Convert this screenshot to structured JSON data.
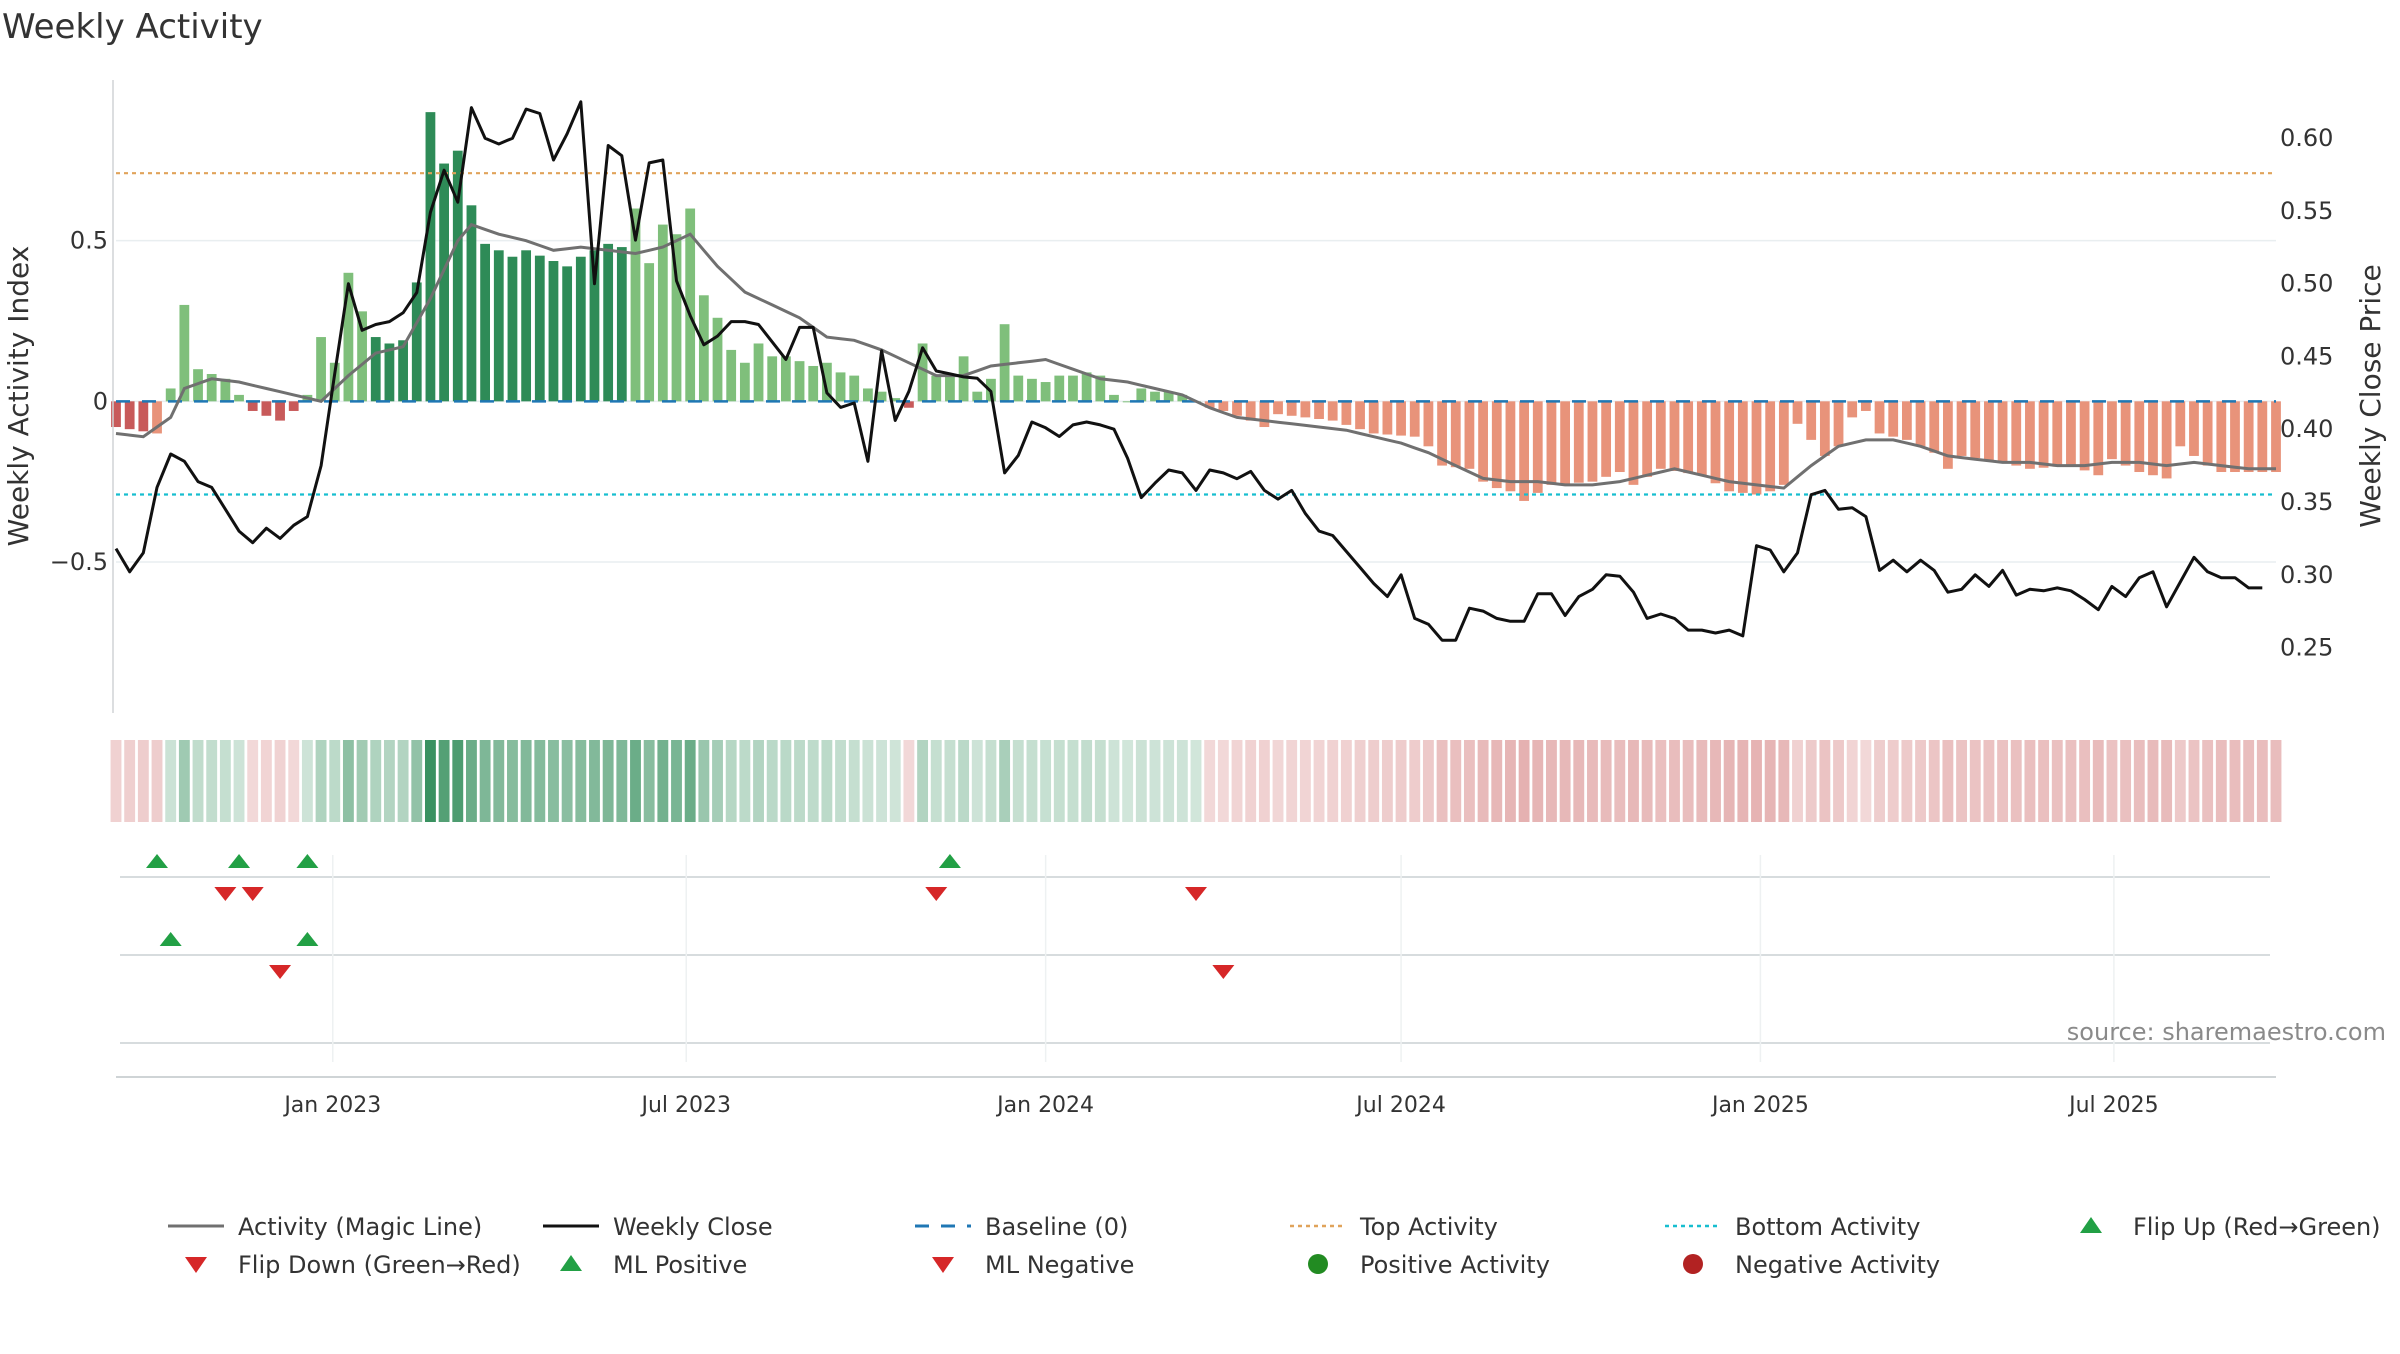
{
  "chart_data": {
    "type": "bar",
    "title": "Weekly Activity",
    "ylabel": "Weekly Activity Index",
    "ylabel_right": "Weekly Close Price",
    "ylim": [
      -0.97,
      1.0
    ],
    "ylim_right": [
      0.205,
      0.64
    ],
    "yticks": [
      -0.5,
      0,
      0.5
    ],
    "yticks_right": [
      0.25,
      0.3,
      0.35,
      0.4,
      0.45,
      0.5,
      0.55,
      0.6
    ],
    "x_start": "2022-09-12",
    "x_end": "2025-09-22",
    "week_step_days": 7,
    "xticks": [
      {
        "date": "2023-01-01",
        "label": "Jan 2023"
      },
      {
        "date": "2023-07-01",
        "label": "Jul 2023"
      },
      {
        "date": "2024-01-01",
        "label": "Jan 2024"
      },
      {
        "date": "2024-07-01",
        "label": "Jul 2024"
      },
      {
        "date": "2025-01-01",
        "label": "Jan 2025"
      },
      {
        "date": "2025-07-01",
        "label": "Jul 2025"
      }
    ],
    "top_activity": 0.71,
    "bottom_activity": -0.29,
    "baseline": 0,
    "grid": true,
    "source_note": "source: sharemaestro.com",
    "colors": {
      "strong_positive": "#2e8b57",
      "positive": "#7fbf7b",
      "strong_negative": "#c85a5a",
      "negative": "#e8937a",
      "magic_line": "#707070",
      "close": "#111111",
      "baseline": "#1f77b4",
      "top": "#e0a35a",
      "bottom": "#17becf",
      "flip_up": "#22a045",
      "flip_down": "#d62728",
      "ml_positive": "#22a045",
      "ml_negative": "#d62728",
      "positive_activity": "#228b22",
      "negative_activity": "#b22222"
    },
    "activity_knots": [
      [
        0,
        -0.08
      ],
      [
        3,
        -0.1
      ],
      [
        4,
        0.04
      ],
      [
        5,
        0.3
      ],
      [
        6,
        0.1
      ],
      [
        8,
        0.07
      ],
      [
        9,
        0.02
      ],
      [
        10,
        -0.03
      ],
      [
        12,
        -0.06
      ],
      [
        13,
        -0.03
      ],
      [
        14,
        0.02
      ],
      [
        15,
        0.2
      ],
      [
        16,
        0.12
      ],
      [
        17,
        0.4
      ],
      [
        18,
        0.28
      ],
      [
        19,
        0.2
      ],
      [
        20,
        0.18
      ],
      [
        21,
        0.19
      ],
      [
        22,
        0.37
      ],
      [
        23,
        0.9
      ],
      [
        24,
        0.74
      ],
      [
        25,
        0.78
      ],
      [
        26,
        0.61
      ],
      [
        27,
        0.49
      ],
      [
        29,
        0.45
      ],
      [
        30,
        0.47
      ],
      [
        33,
        0.42
      ],
      [
        34,
        0.45
      ],
      [
        35,
        0.47
      ],
      [
        36,
        0.49
      ],
      [
        37,
        0.48
      ],
      [
        38,
        0.6
      ],
      [
        39,
        0.43
      ],
      [
        40,
        0.55
      ],
      [
        41,
        0.52
      ],
      [
        42,
        0.6
      ],
      [
        43,
        0.33
      ],
      [
        44,
        0.26
      ],
      [
        45,
        0.16
      ],
      [
        46,
        0.12
      ],
      [
        47,
        0.18
      ],
      [
        48,
        0.14
      ],
      [
        49,
        0.14
      ],
      [
        51,
        0.11
      ],
      [
        52,
        0.12
      ],
      [
        53,
        0.09
      ],
      [
        54,
        0.08
      ],
      [
        55,
        0.04
      ],
      [
        56,
        0.03
      ],
      [
        57,
        0.01
      ],
      [
        58,
        -0.02
      ],
      [
        59,
        0.18
      ],
      [
        60,
        0.08
      ],
      [
        61,
        0.08
      ],
      [
        62,
        0.14
      ],
      [
        63,
        0.03
      ],
      [
        64,
        0.07
      ],
      [
        65,
        0.24
      ],
      [
        66,
        0.08
      ],
      [
        67,
        0.07
      ],
      [
        68,
        0.06
      ],
      [
        69,
        0.08
      ],
      [
        70,
        0.08
      ],
      [
        71,
        0.09
      ],
      [
        72,
        0.08
      ],
      [
        73,
        0.02
      ],
      [
        74,
        0.0
      ],
      [
        75,
        0.04
      ],
      [
        76,
        0.03
      ],
      [
        77,
        0.03
      ],
      [
        78,
        0.02
      ],
      [
        79,
        0.0
      ],
      [
        80,
        -0.02
      ],
      [
        81,
        -0.03
      ],
      [
        83,
        -0.06
      ],
      [
        84,
        -0.08
      ],
      [
        85,
        -0.04
      ],
      [
        89,
        -0.06
      ],
      [
        92,
        -0.1
      ],
      [
        95,
        -0.11
      ],
      [
        96,
        -0.14
      ],
      [
        97,
        -0.2
      ],
      [
        99,
        -0.21
      ],
      [
        100,
        -0.25
      ],
      [
        101,
        -0.27
      ],
      [
        102,
        -0.28
      ],
      [
        103,
        -0.31
      ],
      [
        105,
        -0.26
      ],
      [
        108,
        -0.25
      ],
      [
        110,
        -0.22
      ],
      [
        111,
        -0.26
      ],
      [
        113,
        -0.21
      ],
      [
        116,
        -0.23
      ],
      [
        118,
        -0.28
      ],
      [
        120,
        -0.29
      ],
      [
        121,
        -0.28
      ],
      [
        122,
        -0.26
      ],
      [
        123,
        -0.07
      ],
      [
        124,
        -0.12
      ],
      [
        125,
        -0.17
      ],
      [
        126,
        -0.14
      ],
      [
        127,
        -0.05
      ],
      [
        128,
        -0.03
      ],
      [
        129,
        -0.1
      ],
      [
        131,
        -0.12
      ],
      [
        132,
        -0.14
      ],
      [
        133,
        -0.16
      ],
      [
        134,
        -0.21
      ],
      [
        135,
        -0.17
      ],
      [
        138,
        -0.19
      ],
      [
        140,
        -0.21
      ],
      [
        143,
        -0.2
      ],
      [
        145,
        -0.23
      ],
      [
        146,
        -0.18
      ],
      [
        148,
        -0.22
      ],
      [
        150,
        -0.24
      ],
      [
        151,
        -0.14
      ],
      [
        153,
        -0.2
      ],
      [
        154,
        -0.22
      ],
      [
        156,
        -0.22
      ]
    ],
    "bar_shades": [
      1,
      1,
      1,
      0,
      1,
      1,
      0,
      0,
      0,
      0,
      1,
      1,
      1,
      1,
      0,
      1,
      1,
      1,
      1,
      2,
      3,
      3,
      2,
      2,
      2,
      2,
      2,
      2,
      2,
      2,
      2,
      2,
      2,
      2,
      2,
      2,
      2,
      2,
      1,
      1,
      1,
      1,
      1,
      1,
      1,
      1,
      1,
      1,
      1,
      1,
      1,
      1,
      1,
      1,
      0,
      0,
      1,
      1,
      1,
      1,
      1,
      1,
      1,
      1,
      1,
      1,
      1,
      1,
      1,
      1,
      1,
      1,
      0,
      0,
      0,
      0,
      0,
      0,
      0,
      0,
      0,
      0,
      0,
      0,
      0,
      0,
      0,
      0,
      0,
      0,
      0,
      0,
      0,
      0,
      0,
      0,
      0,
      0,
      0,
      0,
      0,
      0,
      0,
      0,
      0,
      0,
      0,
      0,
      0,
      0,
      0,
      0,
      0,
      0,
      0,
      0,
      0,
      0,
      0,
      0,
      0,
      0,
      0,
      0,
      0,
      0,
      0,
      0,
      0,
      0,
      0,
      0,
      0,
      0,
      0,
      0,
      0,
      0,
      0,
      0,
      0,
      0,
      0,
      0,
      0,
      0,
      0,
      0,
      0,
      0,
      0,
      0,
      0,
      0,
      0,
      0,
      0
    ],
    "magic_line": [
      [
        0,
        -0.1
      ],
      [
        2,
        -0.11
      ],
      [
        4,
        -0.05
      ],
      [
        5,
        0.04
      ],
      [
        7,
        0.07
      ],
      [
        9,
        0.06
      ],
      [
        11,
        0.04
      ],
      [
        13,
        0.02
      ],
      [
        15,
        0.0
      ],
      [
        17,
        0.08
      ],
      [
        19,
        0.15
      ],
      [
        21,
        0.17
      ],
      [
        23,
        0.32
      ],
      [
        25,
        0.5
      ],
      [
        26,
        0.55
      ],
      [
        28,
        0.52
      ],
      [
        30,
        0.5
      ],
      [
        32,
        0.47
      ],
      [
        34,
        0.48
      ],
      [
        36,
        0.47
      ],
      [
        38,
        0.46
      ],
      [
        40,
        0.48
      ],
      [
        42,
        0.52
      ],
      [
        44,
        0.42
      ],
      [
        46,
        0.34
      ],
      [
        48,
        0.3
      ],
      [
        50,
        0.26
      ],
      [
        52,
        0.2
      ],
      [
        54,
        0.19
      ],
      [
        56,
        0.16
      ],
      [
        58,
        0.12
      ],
      [
        60,
        0.08
      ],
      [
        62,
        0.08
      ],
      [
        64,
        0.11
      ],
      [
        66,
        0.12
      ],
      [
        68,
        0.13
      ],
      [
        70,
        0.1
      ],
      [
        72,
        0.07
      ],
      [
        74,
        0.06
      ],
      [
        76,
        0.04
      ],
      [
        78,
        0.02
      ],
      [
        80,
        -0.02
      ],
      [
        82,
        -0.05
      ],
      [
        84,
        -0.06
      ],
      [
        86,
        -0.07
      ],
      [
        88,
        -0.08
      ],
      [
        90,
        -0.09
      ],
      [
        92,
        -0.11
      ],
      [
        94,
        -0.13
      ],
      [
        96,
        -0.16
      ],
      [
        98,
        -0.2
      ],
      [
        100,
        -0.24
      ],
      [
        102,
        -0.25
      ],
      [
        104,
        -0.25
      ],
      [
        106,
        -0.26
      ],
      [
        108,
        -0.26
      ],
      [
        110,
        -0.25
      ],
      [
        112,
        -0.23
      ],
      [
        114,
        -0.21
      ],
      [
        116,
        -0.23
      ],
      [
        118,
        -0.25
      ],
      [
        120,
        -0.26
      ],
      [
        122,
        -0.27
      ],
      [
        124,
        -0.2
      ],
      [
        126,
        -0.14
      ],
      [
        128,
        -0.12
      ],
      [
        130,
        -0.12
      ],
      [
        132,
        -0.14
      ],
      [
        134,
        -0.17
      ],
      [
        136,
        -0.18
      ],
      [
        138,
        -0.19
      ],
      [
        140,
        -0.19
      ],
      [
        142,
        -0.2
      ],
      [
        144,
        -0.2
      ],
      [
        146,
        -0.19
      ],
      [
        148,
        -0.19
      ],
      [
        150,
        -0.2
      ],
      [
        152,
        -0.19
      ],
      [
        154,
        -0.2
      ],
      [
        156,
        -0.21
      ]
    ],
    "weekly_close": [
      [
        0,
        0.318
      ],
      [
        1,
        0.302
      ],
      [
        2,
        0.315
      ],
      [
        3,
        0.36
      ],
      [
        4,
        0.383
      ],
      [
        5,
        0.378
      ],
      [
        6,
        0.364
      ],
      [
        7,
        0.36
      ],
      [
        8,
        0.345
      ],
      [
        9,
        0.33
      ],
      [
        10,
        0.322
      ],
      [
        11,
        0.332
      ],
      [
        12,
        0.325
      ],
      [
        13,
        0.334
      ],
      [
        14,
        0.34
      ],
      [
        15,
        0.375
      ],
      [
        16,
        0.438
      ],
      [
        17,
        0.5
      ],
      [
        18,
        0.468
      ],
      [
        19,
        0.472
      ],
      [
        20,
        0.474
      ],
      [
        21,
        0.48
      ],
      [
        22,
        0.494
      ],
      [
        23,
        0.549
      ],
      [
        24,
        0.578
      ],
      [
        25,
        0.556
      ],
      [
        26,
        0.621
      ],
      [
        27,
        0.6
      ],
      [
        28,
        0.596
      ],
      [
        29,
        0.6
      ],
      [
        30,
        0.62
      ],
      [
        31,
        0.617
      ],
      [
        32,
        0.585
      ],
      [
        33,
        0.603
      ],
      [
        34,
        0.625
      ],
      [
        35,
        0.5
      ],
      [
        36,
        0.595
      ],
      [
        37,
        0.588
      ],
      [
        38,
        0.53
      ],
      [
        39,
        0.583
      ],
      [
        40,
        0.585
      ],
      [
        41,
        0.502
      ],
      [
        42,
        0.478
      ],
      [
        43,
        0.458
      ],
      [
        44,
        0.464
      ],
      [
        45,
        0.474
      ],
      [
        46,
        0.474
      ],
      [
        47,
        0.472
      ],
      [
        48,
        0.46
      ],
      [
        49,
        0.448
      ],
      [
        50,
        0.47
      ],
      [
        51,
        0.47
      ],
      [
        52,
        0.425
      ],
      [
        53,
        0.415
      ],
      [
        54,
        0.418
      ],
      [
        55,
        0.378
      ],
      [
        56,
        0.454
      ],
      [
        57,
        0.406
      ],
      [
        58,
        0.426
      ],
      [
        59,
        0.456
      ],
      [
        60,
        0.44
      ],
      [
        61,
        0.438
      ],
      [
        62,
        0.436
      ],
      [
        63,
        0.435
      ],
      [
        64,
        0.426
      ],
      [
        65,
        0.37
      ],
      [
        66,
        0.382
      ],
      [
        67,
        0.405
      ],
      [
        68,
        0.401
      ],
      [
        69,
        0.395
      ],
      [
        70,
        0.403
      ],
      [
        71,
        0.405
      ],
      [
        72,
        0.403
      ],
      [
        73,
        0.4
      ],
      [
        74,
        0.38
      ],
      [
        75,
        0.353
      ],
      [
        76,
        0.363
      ],
      [
        77,
        0.372
      ],
      [
        78,
        0.37
      ],
      [
        79,
        0.358
      ],
      [
        80,
        0.372
      ],
      [
        81,
        0.37
      ],
      [
        82,
        0.366
      ],
      [
        83,
        0.371
      ],
      [
        84,
        0.358
      ],
      [
        85,
        0.352
      ],
      [
        86,
        0.358
      ],
      [
        87,
        0.342
      ],
      [
        88,
        0.33
      ],
      [
        89,
        0.327
      ],
      [
        90,
        0.316
      ],
      [
        91,
        0.305
      ],
      [
        92,
        0.294
      ],
      [
        93,
        0.285
      ],
      [
        94,
        0.3
      ],
      [
        95,
        0.27
      ],
      [
        96,
        0.266
      ],
      [
        97,
        0.255
      ],
      [
        98,
        0.255
      ],
      [
        99,
        0.277
      ],
      [
        100,
        0.275
      ],
      [
        101,
        0.27
      ],
      [
        102,
        0.268
      ],
      [
        103,
        0.268
      ],
      [
        104,
        0.287
      ],
      [
        105,
        0.287
      ],
      [
        106,
        0.272
      ],
      [
        107,
        0.285
      ],
      [
        108,
        0.29
      ],
      [
        109,
        0.3
      ],
      [
        110,
        0.299
      ],
      [
        111,
        0.288
      ],
      [
        112,
        0.27
      ],
      [
        113,
        0.273
      ],
      [
        114,
        0.27
      ],
      [
        115,
        0.262
      ],
      [
        116,
        0.262
      ],
      [
        117,
        0.26
      ],
      [
        118,
        0.262
      ],
      [
        119,
        0.258
      ],
      [
        120,
        0.32
      ],
      [
        121,
        0.317
      ],
      [
        122,
        0.302
      ],
      [
        123,
        0.315
      ],
      [
        124,
        0.355
      ],
      [
        125,
        0.358
      ],
      [
        126,
        0.345
      ],
      [
        127,
        0.346
      ],
      [
        128,
        0.34
      ],
      [
        129,
        0.303
      ],
      [
        130,
        0.31
      ],
      [
        131,
        0.302
      ],
      [
        132,
        0.31
      ],
      [
        133,
        0.303
      ],
      [
        134,
        0.288
      ],
      [
        135,
        0.29
      ],
      [
        136,
        0.3
      ],
      [
        137,
        0.292
      ],
      [
        138,
        0.303
      ],
      [
        139,
        0.286
      ],
      [
        140,
        0.29
      ],
      [
        141,
        0.289
      ],
      [
        142,
        0.291
      ],
      [
        143,
        0.289
      ],
      [
        144,
        0.283
      ],
      [
        145,
        0.276
      ],
      [
        146,
        0.292
      ],
      [
        147,
        0.285
      ],
      [
        148,
        0.298
      ],
      [
        149,
        0.302
      ],
      [
        150,
        0.278
      ],
      [
        151,
        0.295
      ],
      [
        152,
        0.312
      ],
      [
        153,
        0.302
      ],
      [
        154,
        0.298
      ],
      [
        155,
        0.298
      ],
      [
        156,
        0.291
      ],
      [
        157,
        0.291
      ]
    ],
    "strip": {
      "min_alpha": 0.22,
      "max_alpha": 0.95
    },
    "signals": {
      "flip_up_weeks": [
        3,
        9,
        14,
        61
      ],
      "flip_down_weeks": [
        8,
        10,
        60,
        79
      ],
      "ml_positive_weeks": [
        4,
        14
      ],
      "ml_negative_weeks": [
        12,
        81
      ]
    },
    "legend": [
      {
        "label": "Activity (Magic Line)",
        "marker": "line-gray"
      },
      {
        "label": "Weekly Close",
        "marker": "line-black"
      },
      {
        "label": "Baseline (0)",
        "marker": "dash-blue"
      },
      {
        "label": "Top Activity",
        "marker": "dot-orange"
      },
      {
        "label": "Bottom Activity",
        "marker": "dot-cyan"
      },
      {
        "label": "Flip Up (Red→Green)",
        "marker": "tri-up"
      },
      {
        "label": "Flip Down (Green→Red)",
        "marker": "tri-down"
      },
      {
        "label": "ML Positive",
        "marker": "tri-up"
      },
      {
        "label": "ML Negative",
        "marker": "tri-down"
      },
      {
        "label": "Positive Activity",
        "marker": "circle-green"
      },
      {
        "label": "Negative Activity",
        "marker": "circle-red"
      }
    ]
  }
}
